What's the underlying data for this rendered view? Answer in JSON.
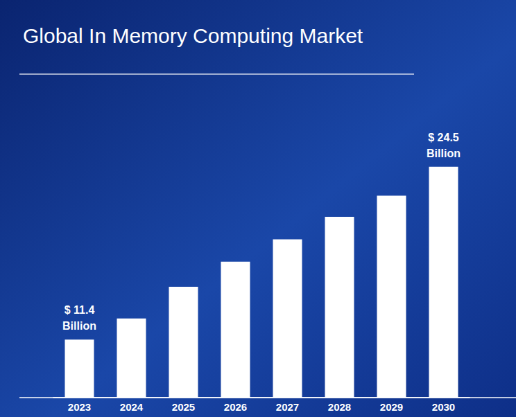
{
  "chart_data": {
    "type": "bar",
    "title": "Global In Memory Computing Market",
    "categories": [
      "2023",
      "2024",
      "2025",
      "2026",
      "2027",
      "2028",
      "2029",
      "2030"
    ],
    "values": [
      11.4,
      13.0,
      15.4,
      17.3,
      19.0,
      20.7,
      22.3,
      24.5
    ],
    "value_labels": [
      "$ 11.4 Billion",
      null,
      null,
      null,
      null,
      null,
      null,
      "$ 24.5 Billion"
    ],
    "data_labels": true,
    "color": "#ffffff",
    "ylim": [
      7,
      27
    ],
    "grid": false,
    "tick_labels": "x"
  }
}
